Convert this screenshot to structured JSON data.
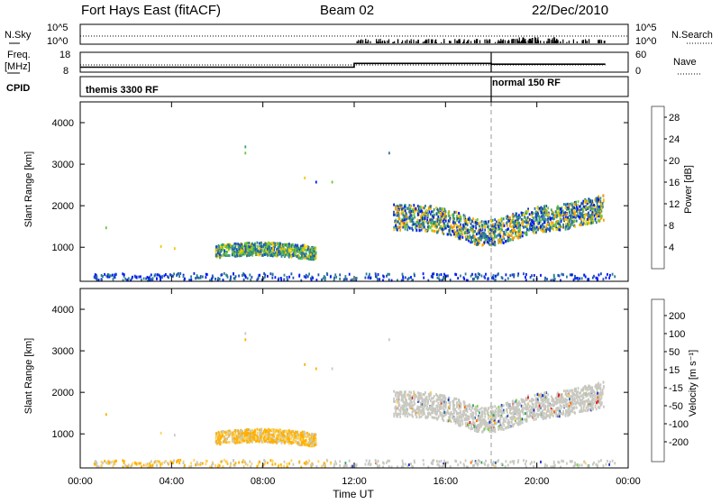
{
  "header": {
    "station": "Fort Hays East (fitACF)",
    "beam": "Beam 02",
    "date": "22/Dec/2010"
  },
  "status_panels": {
    "nsky_label": "N.Sky",
    "nsky_ticks": [
      "10^5",
      "10^0"
    ],
    "nsearch_label": "N.Search",
    "nsearch_ticks": [
      "10^5",
      "10^0"
    ],
    "freq_label": "Freq.",
    "freq_unit": "[MHz]",
    "freq_ticks": [
      18,
      8
    ],
    "nave_label": "Nave",
    "nave_ticks": [
      60,
      0
    ],
    "freq_steps": [
      {
        "t0": 0,
        "t1": 12,
        "f": 10.5
      },
      {
        "t0": 12,
        "t1": 18,
        "f": 12.4
      },
      {
        "t0": 18,
        "t1": 23,
        "f": 12.0
      }
    ],
    "cpid_label": "CPID",
    "cpid_segments": [
      {
        "start": 0,
        "label": "themis 3300 RF"
      },
      {
        "start": 18,
        "label": "normal 150 RF"
      }
    ]
  },
  "colors": {
    "grey_scatter": "#c8c8c0",
    "power_scale": [
      "#0016ff",
      "#1f4fb8",
      "#2d7d90",
      "#3aa070",
      "#68c838",
      "#f2c800",
      "#ff9c00",
      "#ff5a00",
      "#ff0000"
    ],
    "velocity_scale": [
      "#e01818",
      "#ff6a00",
      "#ffb000",
      "#ffd35a",
      "#c8c8c0",
      "#78d848",
      "#3aa060",
      "#2a66b0",
      "#1a2fc8"
    ]
  },
  "chart_data": [
    {
      "type": "heatmap",
      "name": "power",
      "ylabel": "Slant Range [km]",
      "yticks": [
        1000,
        2000,
        3000,
        4000
      ],
      "ylim": [
        180,
        4500
      ],
      "xlim": [
        0,
        24
      ],
      "colorbar_label": "Power [dB]",
      "colorbar_ticks": [
        4,
        8,
        12,
        16,
        20,
        24,
        28
      ],
      "colorbar_range": [
        0,
        30
      ],
      "regions": [
        {
          "t0": 5.9,
          "t1": 10.3,
          "r0": 780,
          "r1": 1050,
          "level": "mid"
        },
        {
          "t0": 13.7,
          "t1": 22.9,
          "r0": 1300,
          "r1": 2300,
          "level": "mixed"
        },
        {
          "t0": 0.5,
          "t1": 23.5,
          "r0": 250,
          "r1": 400,
          "level": "low"
        }
      ]
    },
    {
      "type": "heatmap",
      "name": "velocity",
      "ylabel": "Slant Range [km]",
      "yticks": [
        1000,
        2000,
        3000,
        4000
      ],
      "ylim": [
        180,
        4500
      ],
      "xlim": [
        0,
        24
      ],
      "xlabel": "Time UT",
      "xticks": [
        "00:00",
        "04:00",
        "08:00",
        "12:00",
        "16:00",
        "20:00",
        "00:00"
      ],
      "colorbar_label": "Velocity [m s⁻¹]",
      "colorbar_ticks": [
        200,
        100,
        50,
        15,
        -15,
        -50,
        -100,
        -200
      ]
    }
  ]
}
